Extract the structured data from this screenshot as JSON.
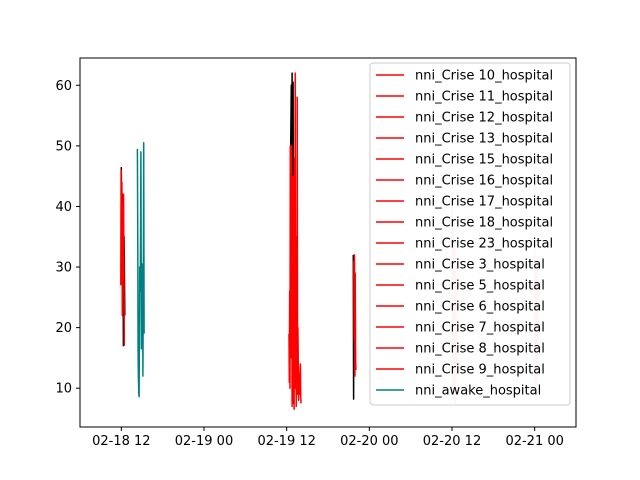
{
  "chart_data": {
    "type": "line",
    "x_axis_type": "datetime",
    "xlim": [
      "2018-02-18T06:00",
      "2018-02-21T06:00"
    ],
    "ylim": [
      3.6,
      64.5
    ],
    "x_ticks": [
      {
        "t": "2018-02-18T12:00",
        "label": "02-18 12"
      },
      {
        "t": "2018-02-19T00:00",
        "label": "02-19 00"
      },
      {
        "t": "2018-02-19T12:00",
        "label": "02-19 12"
      },
      {
        "t": "2018-02-20T00:00",
        "label": "02-20 00"
      },
      {
        "t": "2018-02-20T12:00",
        "label": "02-20 12"
      },
      {
        "t": "2018-02-21T00:00",
        "label": "02-21 00"
      }
    ],
    "y_ticks": [
      10,
      20,
      30,
      40,
      50,
      60
    ],
    "grid": false,
    "legend_position": "upper-right",
    "colors": {
      "crise": "#ff0000",
      "awake": "#008080",
      "black": "#000000",
      "faded": "#ffc9c9"
    },
    "legend": [
      {
        "name": "nni_Crise 10_hospital",
        "color": "#ff0000"
      },
      {
        "name": "nni_Crise 11_hospital",
        "color": "#ff0000"
      },
      {
        "name": "nni_Crise 12_hospital",
        "color": "#ff0000"
      },
      {
        "name": "nni_Crise 13_hospital",
        "color": "#ff0000"
      },
      {
        "name": "nni_Crise 15_hospital",
        "color": "#ff0000"
      },
      {
        "name": "nni_Crise 16_hospital",
        "color": "#ff0000"
      },
      {
        "name": "nni_Crise 17_hospital",
        "color": "#ff0000"
      },
      {
        "name": "nni_Crise 18_hospital",
        "color": "#ff0000"
      },
      {
        "name": "nni_Crise 23_hospital",
        "color": "#ff0000"
      },
      {
        "name": "nni_Crise 3_hospital",
        "color": "#ff0000"
      },
      {
        "name": "nni_Crise 5_hospital",
        "color": "#ff0000"
      },
      {
        "name": "nni_Crise 6_hospital",
        "color": "#ff0000"
      },
      {
        "name": "nni_Crise 7_hospital",
        "color": "#ff0000"
      },
      {
        "name": "nni_Crise 8_hospital",
        "color": "#ff0000"
      },
      {
        "name": "nni_Crise 9_hospital",
        "color": "#ff0000"
      },
      {
        "name": "nni_awake_hospital",
        "color": "#008080"
      }
    ],
    "series": [
      {
        "color": "#000000",
        "points": [
          [
            "2018-02-18T12:00",
            46.5
          ],
          [
            "2018-02-18T12:06",
            30.0
          ],
          [
            "2018-02-18T12:12",
            42.0
          ],
          [
            "2018-02-18T12:18",
            17.0
          ],
          [
            "2018-02-18T12:24",
            35.0
          ],
          [
            "2018-02-18T12:30",
            22.0
          ]
        ]
      },
      {
        "color": "#ff0000",
        "points": [
          [
            "2018-02-18T11:55",
            27.0
          ],
          [
            "2018-02-18T11:58",
            46.0
          ],
          [
            "2018-02-18T12:02",
            34.0
          ],
          [
            "2018-02-18T12:05",
            44.0
          ],
          [
            "2018-02-18T12:08",
            22.0
          ],
          [
            "2018-02-18T12:12",
            40.0
          ],
          [
            "2018-02-18T12:16",
            28.0
          ],
          [
            "2018-02-18T12:20",
            42.0
          ],
          [
            "2018-02-18T12:26",
            17.0
          ]
        ]
      },
      {
        "color": "#008080",
        "points": [
          [
            "2018-02-18T14:20",
            49.5
          ],
          [
            "2018-02-18T14:23",
            33.0
          ],
          [
            "2018-02-18T14:26",
            16.0
          ],
          [
            "2018-02-18T14:29",
            12.0
          ],
          [
            "2018-02-18T14:32",
            9.0
          ],
          [
            "2018-02-18T14:35",
            8.6
          ],
          [
            "2018-02-18T14:40",
            30.0
          ],
          [
            "2018-02-18T14:45",
            26.0
          ],
          [
            "2018-02-18T14:50",
            49.0
          ],
          [
            "2018-02-18T14:55",
            16.5
          ],
          [
            "2018-02-18T15:00",
            30.5
          ],
          [
            "2018-02-18T15:05",
            28.0
          ],
          [
            "2018-02-18T15:08",
            12.0
          ],
          [
            "2018-02-18T15:12",
            30.0
          ],
          [
            "2018-02-18T15:15",
            50.5
          ],
          [
            "2018-02-18T15:18",
            19.0
          ]
        ]
      },
      {
        "color": "#000000",
        "points": [
          [
            "2018-02-19T12:35",
            50.0
          ],
          [
            "2018-02-19T12:40",
            60.0
          ],
          [
            "2018-02-19T12:44",
            38.0
          ],
          [
            "2018-02-19T12:47",
            62.0
          ],
          [
            "2018-02-19T12:50",
            8.0
          ],
          [
            "2018-02-19T12:53",
            45.0
          ],
          [
            "2018-02-19T12:56",
            60.5
          ],
          [
            "2018-02-19T13:00",
            7.5
          ],
          [
            "2018-02-19T13:05",
            40.0
          ],
          [
            "2018-02-19T13:10",
            10.0
          ]
        ]
      },
      {
        "color": "#ff0000",
        "points": [
          [
            "2018-02-19T12:20",
            19.0
          ],
          [
            "2018-02-19T12:23",
            11.0
          ],
          [
            "2018-02-19T12:26",
            26.0
          ],
          [
            "2018-02-19T12:29",
            10.0
          ],
          [
            "2018-02-19T12:32",
            50.0
          ],
          [
            "2018-02-19T12:35",
            15.0
          ],
          [
            "2018-02-19T12:38",
            42.0
          ],
          [
            "2018-02-19T12:41",
            22.0
          ],
          [
            "2018-02-19T12:44",
            50.0
          ],
          [
            "2018-02-19T12:47",
            7.0
          ],
          [
            "2018-02-19T12:50",
            30.0
          ],
          [
            "2018-02-19T12:53",
            11.0
          ],
          [
            "2018-02-19T12:56",
            45.0
          ],
          [
            "2018-02-19T12:59",
            8.0
          ],
          [
            "2018-02-19T13:02",
            38.0
          ],
          [
            "2018-02-19T13:05",
            6.5
          ],
          [
            "2018-02-19T13:08",
            48.0
          ],
          [
            "2018-02-19T13:11",
            15.0
          ],
          [
            "2018-02-19T13:14",
            62.0
          ],
          [
            "2018-02-19T13:17",
            10.0
          ],
          [
            "2018-02-19T13:20",
            35.0
          ],
          [
            "2018-02-19T13:23",
            7.0
          ],
          [
            "2018-02-19T13:26",
            28.0
          ],
          [
            "2018-02-19T13:29",
            12.0
          ],
          [
            "2018-02-19T13:32",
            58.0
          ],
          [
            "2018-02-19T13:35",
            9.0
          ],
          [
            "2018-02-19T13:38",
            20.0
          ],
          [
            "2018-02-19T13:41",
            14.0
          ],
          [
            "2018-02-19T13:44",
            8.0
          ],
          [
            "2018-02-19T13:47",
            10.0
          ],
          [
            "2018-02-19T13:50",
            9.0
          ],
          [
            "2018-02-19T13:54",
            12.0
          ],
          [
            "2018-02-19T14:00",
            14.0
          ],
          [
            "2018-02-19T14:02",
            9.0
          ],
          [
            "2018-02-19T14:05",
            7.5
          ]
        ]
      },
      {
        "color": "#000000",
        "points": [
          [
            "2018-02-19T21:40",
            32.0
          ],
          [
            "2018-02-19T21:43",
            8.2
          ],
          [
            "2018-02-19T21:46",
            30.0
          ]
        ]
      },
      {
        "color": "#ff0000",
        "points": [
          [
            "2018-02-19T21:45",
            31.0
          ],
          [
            "2018-02-19T21:48",
            18.0
          ],
          [
            "2018-02-19T21:51",
            32.0
          ],
          [
            "2018-02-19T21:54",
            12.0
          ],
          [
            "2018-02-19T21:57",
            29.0
          ],
          [
            "2018-02-19T22:00",
            15.0
          ],
          [
            "2018-02-19T22:03",
            13.0
          ]
        ]
      },
      {
        "color": "#ffc9c9",
        "points": [
          [
            "2018-02-20T12:00",
            40.0
          ],
          [
            "2018-02-20T12:05",
            9.0
          ],
          [
            "2018-02-20T12:10",
            38.0
          ],
          [
            "2018-02-20T12:14",
            8.0
          ],
          [
            "2018-02-20T12:18",
            35.0
          ],
          [
            "2018-02-20T12:22",
            10.0
          ],
          [
            "2018-02-20T12:26",
            34.0
          ],
          [
            "2018-02-20T12:30",
            7.5
          ],
          [
            "2018-02-20T12:34",
            28.0
          ],
          [
            "2018-02-20T12:38",
            12.0
          ]
        ]
      },
      {
        "color": "#ffc9c9",
        "points": [
          [
            "2018-02-21T00:00",
            33.0
          ],
          [
            "2018-02-21T00:05",
            11.0
          ],
          [
            "2018-02-21T00:10",
            30.0
          ],
          [
            "2018-02-21T00:15",
            10.5
          ],
          [
            "2018-02-21T00:20",
            31.0
          ],
          [
            "2018-02-21T00:25",
            12.0
          ],
          [
            "2018-02-21T00:30",
            28.0
          ]
        ]
      }
    ]
  }
}
